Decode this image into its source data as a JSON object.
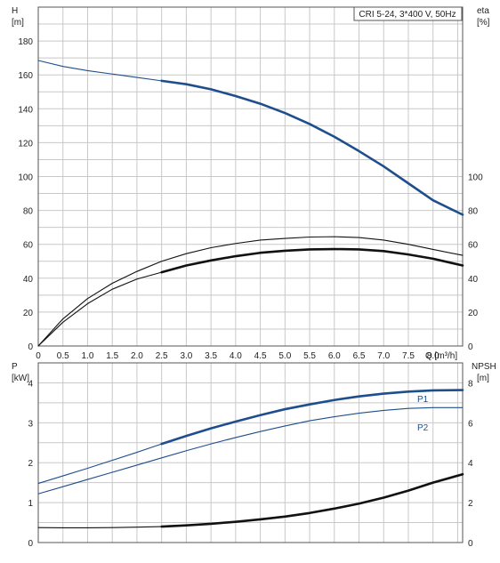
{
  "title": "CRI 5-24, 3*400 V, 50Hz",
  "colors": {
    "blue": "#1f4e8c",
    "black": "#111111",
    "grid": "#c8c8c8"
  },
  "top_chart": {
    "y_left_label_lines": [
      "H",
      "[m]"
    ],
    "y_right_label_lines": [
      "eta",
      "[%]"
    ],
    "x_label": "Q [m³/h]"
  },
  "bottom_chart": {
    "y_left_label_lines": [
      "P",
      "[kW]"
    ],
    "y_right_label_lines": [
      "NPSH",
      "[m]"
    ]
  },
  "chart_data": [
    {
      "type": "line",
      "title": "CRI 5-24, 3*400 V, 50Hz",
      "xlabel": "Q [m³/h]",
      "xlim": [
        0,
        8.6
      ],
      "x_ticks": [
        "0",
        "0.5",
        "1.0",
        "1.5",
        "2.0",
        "2.5",
        "3.0",
        "3.5",
        "4.0",
        "4.5",
        "5.0",
        "5.5",
        "6.0",
        "6.5",
        "7.0",
        "7.5",
        "8.0"
      ],
      "ylabel_left": "H [m]",
      "ylim_left": [
        0,
        200
      ],
      "y_ticks_left": [
        "0",
        "20",
        "40",
        "60",
        "80",
        "100",
        "120",
        "140",
        "160",
        "180"
      ],
      "ylabel_right": "eta [%]",
      "y_ticks_right": [
        "0",
        "20",
        "40",
        "60",
        "80",
        "100"
      ],
      "grid": true,
      "series": [
        {
          "axis": "left",
          "color": "#1f4e8c",
          "width_style": "thin",
          "x": [
            0,
            0.5,
            1.0,
            1.5,
            2.0,
            2.5
          ],
          "y": [
            168.5,
            165,
            162.5,
            160.5,
            158.5,
            156.5
          ]
        },
        {
          "axis": "left",
          "color": "#1f4e8c",
          "width_style": "thick",
          "x": [
            2.5,
            3.0,
            3.5,
            4.0,
            4.5,
            5.0,
            5.5,
            6.0,
            6.5,
            7.0,
            7.5,
            8.0,
            8.6
          ],
          "y": [
            156.5,
            154.5,
            151.5,
            147.5,
            143,
            137.5,
            131,
            123.5,
            115,
            106,
            96,
            86,
            77.5
          ]
        },
        {
          "axis": "left",
          "color": "#111111",
          "width_style": "thin",
          "x": [
            0,
            0.5,
            1.0,
            1.5,
            2.0,
            2.5,
            3.0,
            3.5,
            4.0,
            4.5,
            5.0,
            5.5,
            6.0,
            6.5,
            7.0,
            7.5,
            8.0,
            8.6
          ],
          "y": [
            0,
            16,
            28,
            37,
            44,
            50,
            54.5,
            58,
            60.5,
            62.5,
            63.5,
            64.3,
            64.5,
            64,
            62.5,
            60,
            57,
            53.5
          ]
        },
        {
          "axis": "left",
          "color": "#111111",
          "width_style": "thin",
          "x": [
            0,
            0.5,
            1.0,
            1.5,
            2.0,
            2.5
          ],
          "y": [
            0,
            14,
            25,
            33.5,
            39.5,
            43.5
          ]
        },
        {
          "axis": "left",
          "color": "#111111",
          "width_style": "thick",
          "x": [
            2.5,
            3.0,
            3.5,
            4.0,
            4.5,
            5.0,
            5.5,
            6.0,
            6.5,
            7.0,
            7.5,
            8.0,
            8.6
          ],
          "y": [
            43.5,
            47.5,
            50.5,
            53,
            55,
            56.2,
            57,
            57.2,
            57,
            56,
            54,
            51.5,
            47.5
          ]
        }
      ]
    },
    {
      "type": "line",
      "xlim": [
        0,
        8.6
      ],
      "ylabel_left": "P [kW]",
      "ylim_left": [
        0,
        4.5
      ],
      "y_ticks_left": [
        "0",
        "1",
        "2",
        "3",
        "4"
      ],
      "ylabel_right": "NPSH [m]",
      "ylim_right": [
        0,
        9
      ],
      "y_ticks_right": [
        "0",
        "2",
        "4",
        "6",
        "8"
      ],
      "grid": true,
      "series": [
        {
          "name": "P1",
          "axis": "left",
          "color": "#1f4e8c",
          "width_style": "thin",
          "x": [
            0,
            0.5,
            1.0,
            1.5,
            2.0,
            2.5
          ],
          "y": [
            1.48,
            1.67,
            1.86,
            2.06,
            2.26,
            2.47
          ]
        },
        {
          "name": "P1",
          "axis": "left",
          "color": "#1f4e8c",
          "width_style": "thick",
          "x": [
            2.5,
            3.0,
            3.5,
            4.0,
            4.5,
            5.0,
            5.5,
            6.0,
            6.5,
            7.0,
            7.5,
            8.0,
            8.6
          ],
          "y": [
            2.47,
            2.67,
            2.86,
            3.03,
            3.19,
            3.34,
            3.46,
            3.57,
            3.66,
            3.73,
            3.78,
            3.81,
            3.82
          ]
        },
        {
          "name": "P2",
          "axis": "left",
          "color": "#1f4e8c",
          "width_style": "thin",
          "x": [
            0,
            0.5,
            1.0,
            1.5,
            2.0,
            2.5,
            3.0,
            3.5,
            4.0,
            4.5,
            5.0,
            5.5,
            6.0,
            6.5,
            7.0,
            7.5,
            8.0,
            8.6
          ],
          "y": [
            1.22,
            1.4,
            1.58,
            1.76,
            1.94,
            2.12,
            2.3,
            2.47,
            2.63,
            2.78,
            2.92,
            3.05,
            3.15,
            3.24,
            3.31,
            3.36,
            3.38,
            3.38
          ]
        },
        {
          "name": "NPSH",
          "axis": "right",
          "color": "#111111",
          "width_style": "thin",
          "x": [
            0,
            0.5,
            1.0,
            1.5,
            2.0,
            2.5
          ],
          "y": [
            0.75,
            0.74,
            0.74,
            0.75,
            0.77,
            0.8
          ]
        },
        {
          "name": "NPSH",
          "axis": "right",
          "color": "#111111",
          "width_style": "thick",
          "x": [
            2.5,
            3.0,
            3.5,
            4.0,
            4.5,
            5.0,
            5.5,
            6.0,
            6.5,
            7.0,
            7.5,
            8.0,
            8.6
          ],
          "y": [
            0.8,
            0.86,
            0.94,
            1.04,
            1.16,
            1.3,
            1.48,
            1.7,
            1.95,
            2.25,
            2.6,
            3.0,
            3.42
          ]
        }
      ],
      "series_labels": [
        "P1",
        "P2"
      ]
    }
  ]
}
